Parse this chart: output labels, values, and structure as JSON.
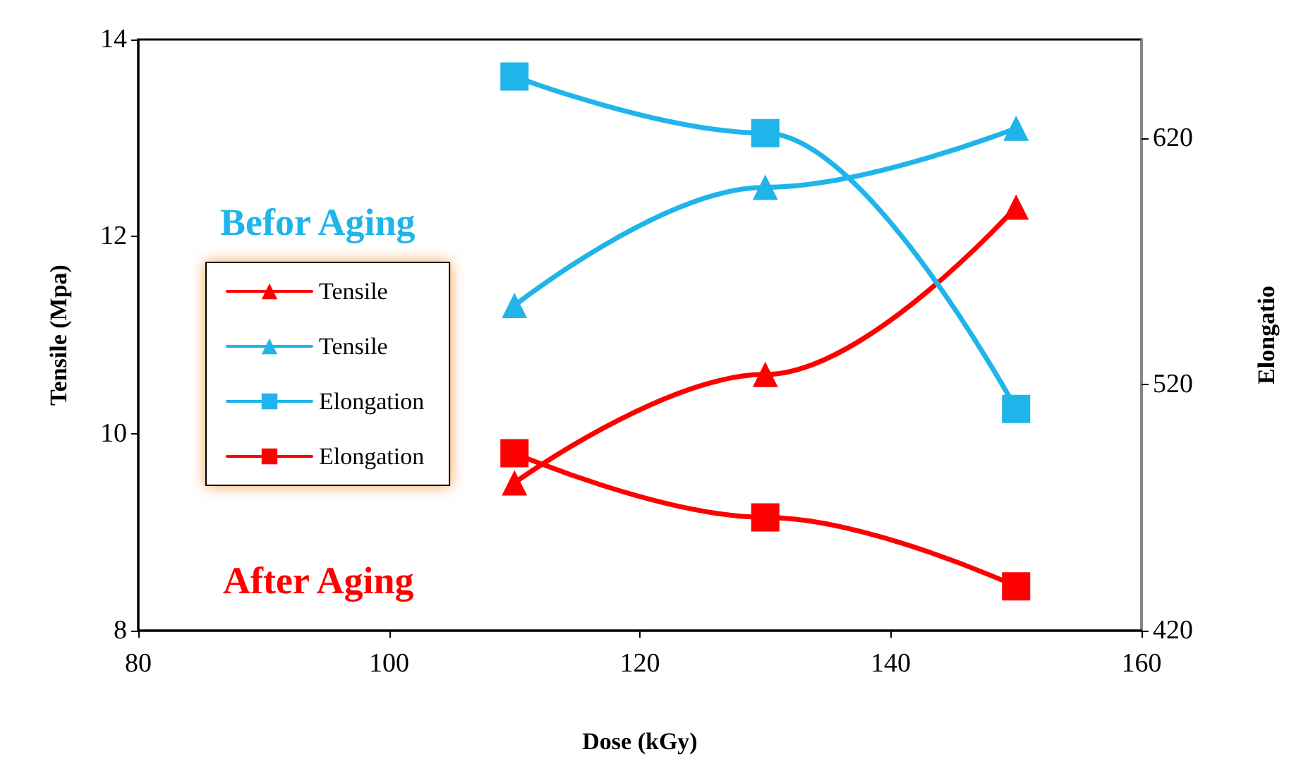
{
  "chart_data": {
    "type": "line",
    "xlabel": "Dose (kGy)",
    "ylabel": "Tensile (Mpa)",
    "y2label": "Elongatio",
    "x": [
      110,
      130,
      150
    ],
    "series": [
      {
        "name": "Tensile",
        "color": "#ff0000",
        "marker": "triangle",
        "values": [
          9.5,
          10.6,
          12.3
        ]
      },
      {
        "name": "Tensile",
        "color": "#1fb4ea",
        "marker": "triangle",
        "values": [
          11.3,
          12.5,
          13.1
        ]
      },
      {
        "name": "Elongation",
        "color": "#1fb4ea",
        "marker": "square",
        "axis": "y2",
        "values": [
          645,
          622,
          510
        ]
      },
      {
        "name": "Elongation",
        "color": "#ff0000",
        "marker": "square",
        "axis": "y2",
        "values": [
          492,
          466,
          438
        ]
      }
    ],
    "xlim": [
      80,
      160
    ],
    "xticks": [
      80,
      100,
      120,
      140,
      160
    ],
    "ylim": [
      8,
      14
    ],
    "yticks": [
      8,
      10,
      12,
      14
    ],
    "y2lim": [
      420,
      660
    ],
    "y2ticks": [
      420,
      520,
      620
    ],
    "annotations": [
      "Befor Aging",
      "After Aging"
    ],
    "legend": "left",
    "grid": false,
    "line_style": "solid"
  }
}
